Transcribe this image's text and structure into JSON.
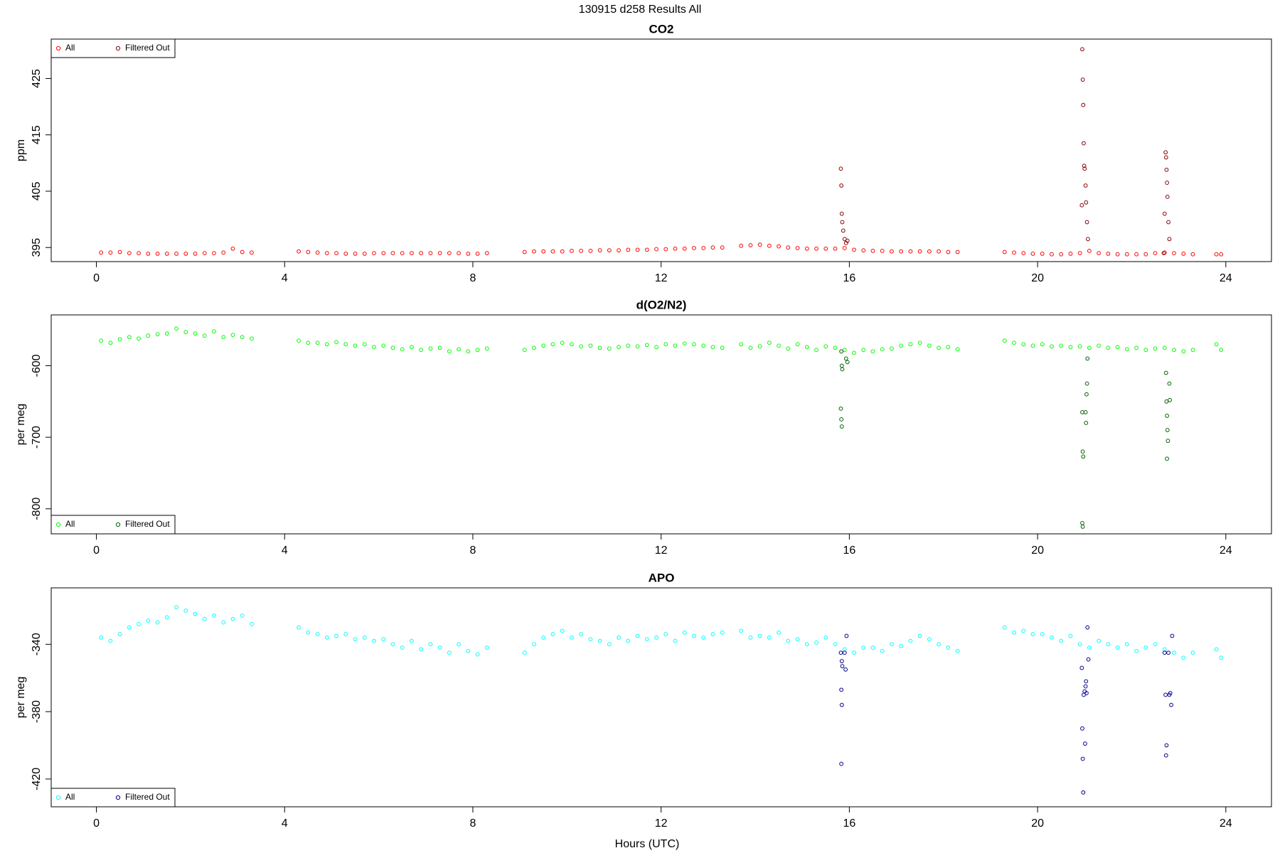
{
  "title": "130915   d258   Results All",
  "xlabel": "Hours (UTC)",
  "chart_data": [
    {
      "type": "scatter",
      "title": "CO2",
      "ylabel": "ppm",
      "legend": "top-left",
      "xlim": [
        -0.96,
        24.97
      ],
      "xticks": [
        0,
        4,
        8,
        12,
        16,
        20,
        24
      ],
      "ylim": [
        392.5,
        432
      ],
      "yticks": [
        395,
        405,
        415,
        425
      ],
      "series": [
        {
          "name": "All",
          "color": "#ff0000",
          "x": [
            0.1,
            0.3,
            0.5,
            0.7,
            0.9,
            1.1,
            1.3,
            1.5,
            1.7,
            1.9,
            2.1,
            2.3,
            2.5,
            2.7,
            2.9,
            3.1,
            3.3,
            4.3,
            4.5,
            4.7,
            4.9,
            5.1,
            5.3,
            5.5,
            5.7,
            5.9,
            6.1,
            6.3,
            6.5,
            6.7,
            6.9,
            7.1,
            7.3,
            7.5,
            7.7,
            7.9,
            8.1,
            8.3,
            9.1,
            9.3,
            9.5,
            9.7,
            9.9,
            10.1,
            10.3,
            10.5,
            10.7,
            10.9,
            11.1,
            11.3,
            11.5,
            11.7,
            11.9,
            12.1,
            12.3,
            12.5,
            12.7,
            12.9,
            13.1,
            13.3,
            13.7,
            13.9,
            14.1,
            14.3,
            14.5,
            14.7,
            14.9,
            15.1,
            15.3,
            15.5,
            15.7,
            15.9,
            16.1,
            16.3,
            16.5,
            16.7,
            16.9,
            17.1,
            17.3,
            17.5,
            17.7,
            17.9,
            18.1,
            18.3,
            19.3,
            19.5,
            19.7,
            19.9,
            20.1,
            20.3,
            20.5,
            20.7,
            20.9,
            21.1,
            21.3,
            21.5,
            21.7,
            21.9,
            22.1,
            22.3,
            22.5,
            22.7,
            22.9,
            23.1,
            23.3,
            23.8,
            23.9
          ],
          "values": [
            394.1,
            394.1,
            394.2,
            394.0,
            394.0,
            393.9,
            393.9,
            393.9,
            393.9,
            393.9,
            393.9,
            394.0,
            394.0,
            394.1,
            394.8,
            394.2,
            394.1,
            394.3,
            394.2,
            394.1,
            394.0,
            394.0,
            393.9,
            393.9,
            393.9,
            394.0,
            394.0,
            394.0,
            394.0,
            394.0,
            394.0,
            394.0,
            394.0,
            394.0,
            394.0,
            393.9,
            393.9,
            394.0,
            394.2,
            394.3,
            394.3,
            394.3,
            394.3,
            394.4,
            394.4,
            394.4,
            394.5,
            394.5,
            394.5,
            394.6,
            394.6,
            394.6,
            394.7,
            394.7,
            394.8,
            394.8,
            394.9,
            394.9,
            395.0,
            395.0,
            395.3,
            395.4,
            395.5,
            395.3,
            395.2,
            395.0,
            394.9,
            394.8,
            394.8,
            394.8,
            394.8,
            394.9,
            394.6,
            394.5,
            394.4,
            394.4,
            394.3,
            394.3,
            394.3,
            394.3,
            394.3,
            394.3,
            394.2,
            394.2,
            394.2,
            394.1,
            394.0,
            393.9,
            393.9,
            393.8,
            393.8,
            393.9,
            394.0,
            394.4,
            394.0,
            393.9,
            393.8,
            393.8,
            393.8,
            393.8,
            394.0,
            394.1,
            394.0,
            393.9,
            393.8,
            393.8,
            393.8
          ]
        },
        {
          "name": "Filtered Out",
          "color": "#8b0000",
          "x": [
            15.82,
            15.83,
            15.84,
            15.85,
            15.87,
            15.9,
            15.93,
            15.96,
            20.95,
            20.96,
            20.97,
            20.98,
            20.99,
            21.0,
            20.94,
            21.02,
            21.03,
            21.05,
            21.07,
            22.72,
            22.73,
            22.74,
            22.75,
            22.76,
            22.7,
            22.78,
            22.8,
            22.68
          ],
          "values": [
            409.0,
            406.0,
            401.0,
            399.5,
            398.0,
            396.5,
            395.8,
            396.2,
            430.2,
            424.8,
            420.3,
            413.5,
            409.5,
            409.0,
            402.5,
            406.0,
            403.0,
            399.5,
            396.5,
            411.9,
            411.0,
            408.8,
            406.5,
            404.0,
            401.0,
            399.5,
            396.5,
            394.0
          ]
        }
      ]
    },
    {
      "type": "scatter",
      "title": "d(O2/N2)",
      "ylabel": "per meg",
      "legend": "bottom-left",
      "xlim": [
        -0.96,
        24.97
      ],
      "xticks": [
        0,
        4,
        8,
        12,
        16,
        20,
        24
      ],
      "ylim": [
        -835,
        -529
      ],
      "yticks": [
        -800,
        -700,
        -600
      ],
      "series": [
        {
          "name": "All",
          "color": "#00ff00",
          "x": [
            0.1,
            0.3,
            0.5,
            0.7,
            0.9,
            1.1,
            1.3,
            1.5,
            1.7,
            1.9,
            2.1,
            2.3,
            2.5,
            2.7,
            2.9,
            3.1,
            3.3,
            4.3,
            4.5,
            4.7,
            4.9,
            5.1,
            5.3,
            5.5,
            5.7,
            5.9,
            6.1,
            6.3,
            6.5,
            6.7,
            6.9,
            7.1,
            7.3,
            7.5,
            7.7,
            7.9,
            8.1,
            8.3,
            9.1,
            9.3,
            9.5,
            9.7,
            9.9,
            10.1,
            10.3,
            10.5,
            10.7,
            10.9,
            11.1,
            11.3,
            11.5,
            11.7,
            11.9,
            12.1,
            12.3,
            12.5,
            12.7,
            12.9,
            13.1,
            13.3,
            13.7,
            13.9,
            14.1,
            14.3,
            14.5,
            14.7,
            14.9,
            15.1,
            15.3,
            15.5,
            15.7,
            15.9,
            16.1,
            16.3,
            16.5,
            16.7,
            16.9,
            17.1,
            17.3,
            17.5,
            17.7,
            17.9,
            18.1,
            18.3,
            19.3,
            19.5,
            19.7,
            19.9,
            20.1,
            20.3,
            20.5,
            20.7,
            20.9,
            21.1,
            21.3,
            21.5,
            21.7,
            21.9,
            22.1,
            22.3,
            22.5,
            22.7,
            22.9,
            23.1,
            23.3,
            23.8,
            23.9
          ],
          "values": [
            -565,
            -568,
            -563,
            -560,
            -562,
            -558,
            -556,
            -555,
            -548,
            -553,
            -555,
            -558,
            -552,
            -560,
            -557,
            -560,
            -562,
            -565,
            -568,
            -568,
            -570,
            -567,
            -570,
            -572,
            -570,
            -574,
            -572,
            -575,
            -577,
            -574,
            -578,
            -576,
            -575,
            -580,
            -577,
            -580,
            -578,
            -576,
            -578,
            -575,
            -572,
            -570,
            -568,
            -570,
            -573,
            -572,
            -575,
            -576,
            -574,
            -572,
            -573,
            -571,
            -574,
            -570,
            -572,
            -569,
            -570,
            -572,
            -574,
            -575,
            -570,
            -575,
            -573,
            -568,
            -572,
            -576,
            -570,
            -574,
            -578,
            -573,
            -575,
            -578,
            -582,
            -578,
            -580,
            -577,
            -576,
            -572,
            -570,
            -568,
            -572,
            -575,
            -574,
            -577,
            -565,
            -568,
            -570,
            -572,
            -570,
            -573,
            -572,
            -574,
            -573,
            -575,
            -572,
            -575,
            -574,
            -577,
            -575,
            -578,
            -576,
            -575,
            -578,
            -580,
            -578,
            -570,
            -578
          ]
        },
        {
          "name": "Filtered Out",
          "color": "#006400",
          "x": [
            15.83,
            15.84,
            15.85,
            15.82,
            15.83,
            15.84,
            15.93,
            15.96,
            20.95,
            20.96,
            20.97,
            20.95,
            20.96,
            21.02,
            21.03,
            21.04,
            21.05,
            21.06,
            22.73,
            22.74,
            22.75,
            22.76,
            22.77,
            22.75,
            22.8,
            22.81
          ],
          "values": [
            -580,
            -600,
            -605,
            -660,
            -675,
            -685,
            -590,
            -595,
            -665,
            -720,
            -727,
            -820,
            -825,
            -665,
            -680,
            -640,
            -625,
            -590,
            -610,
            -650,
            -670,
            -690,
            -705,
            -730,
            -625,
            -648
          ]
        }
      ]
    },
    {
      "type": "scatter",
      "title": "APO",
      "ylabel": "per meg",
      "legend": "bottom-left",
      "xlim": [
        -0.96,
        24.97
      ],
      "xticks": [
        0,
        4,
        8,
        12,
        16,
        20,
        24
      ],
      "ylim": [
        -436.5,
        -306.5
      ],
      "yticks": [
        -420,
        -380,
        -340
      ],
      "series": [
        {
          "name": "All",
          "color": "#00ffff",
          "x": [
            0.1,
            0.3,
            0.5,
            0.7,
            0.9,
            1.1,
            1.3,
            1.5,
            1.7,
            1.9,
            2.1,
            2.3,
            2.5,
            2.7,
            2.9,
            3.1,
            3.3,
            4.3,
            4.5,
            4.7,
            4.9,
            5.1,
            5.3,
            5.5,
            5.7,
            5.9,
            6.1,
            6.3,
            6.5,
            6.7,
            6.9,
            7.1,
            7.3,
            7.5,
            7.7,
            7.9,
            8.1,
            8.3,
            9.1,
            9.3,
            9.5,
            9.7,
            9.9,
            10.1,
            10.3,
            10.5,
            10.7,
            10.9,
            11.1,
            11.3,
            11.5,
            11.7,
            11.9,
            12.1,
            12.3,
            12.5,
            12.7,
            12.9,
            13.1,
            13.3,
            13.7,
            13.9,
            14.1,
            14.3,
            14.5,
            14.7,
            14.9,
            15.1,
            15.3,
            15.5,
            15.7,
            15.9,
            16.1,
            16.3,
            16.5,
            16.7,
            16.9,
            17.1,
            17.3,
            17.5,
            17.7,
            17.9,
            18.1,
            18.3,
            19.3,
            19.5,
            19.7,
            19.9,
            20.1,
            20.3,
            20.5,
            20.7,
            20.9,
            21.1,
            21.3,
            21.5,
            21.7,
            21.9,
            22.1,
            22.3,
            22.5,
            22.7,
            22.9,
            23.1,
            23.3,
            23.8,
            23.9
          ],
          "values": [
            -336,
            -338,
            -334,
            -330,
            -328,
            -326,
            -327,
            -324,
            -318,
            -320,
            -322,
            -325,
            -323,
            -327,
            -325,
            -323,
            -328,
            -330,
            -333,
            -334,
            -336,
            -335,
            -334,
            -337,
            -336,
            -338,
            -337,
            -340,
            -342,
            -338,
            -343,
            -340,
            -342,
            -345,
            -340,
            -344,
            -346,
            -342,
            -345,
            -340,
            -336,
            -334,
            -332,
            -336,
            -334,
            -337,
            -338,
            -340,
            -336,
            -338,
            -335,
            -337,
            -336,
            -334,
            -338,
            -333,
            -335,
            -336,
            -334,
            -333,
            -332,
            -336,
            -335,
            -336,
            -333,
            -338,
            -337,
            -340,
            -339,
            -336,
            -340,
            -343,
            -345,
            -342,
            -342,
            -344,
            -340,
            -341,
            -338,
            -335,
            -337,
            -340,
            -342,
            -344,
            -330,
            -333,
            -332,
            -334,
            -334,
            -336,
            -338,
            -335,
            -340,
            -342,
            -338,
            -340,
            -342,
            -340,
            -344,
            -342,
            -340,
            -343,
            -345,
            -348,
            -345,
            -343,
            -348
          ]
        },
        {
          "name": "Filtered Out",
          "color": "#00008b",
          "x": [
            15.82,
            15.84,
            15.85,
            15.83,
            15.84,
            15.83,
            15.9,
            15.92,
            15.94,
            20.95,
            20.96,
            20.97,
            20.94,
            20.98,
            21.0,
            21.01,
            21.02,
            21.03,
            21.04,
            21.06,
            21.08,
            22.7,
            22.72,
            22.74,
            22.73,
            22.78,
            22.8,
            22.82,
            22.84,
            22.86
          ],
          "values": [
            -345,
            -350,
            -353,
            -367,
            -376,
            -411,
            -345,
            -355,
            -335,
            -390,
            -408,
            -428,
            -354,
            -370,
            -368,
            -399,
            -365,
            -362,
            -369,
            -330,
            -349,
            -345,
            -370,
            -400,
            -406,
            -345,
            -370,
            -369,
            -376,
            -335
          ]
        }
      ]
    }
  ]
}
